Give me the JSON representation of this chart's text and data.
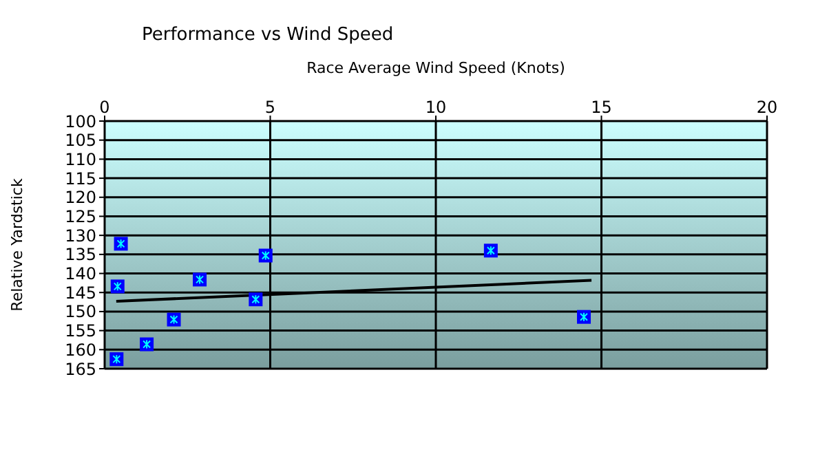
{
  "chart_data": {
    "type": "scatter",
    "title": "Performance vs Wind Speed",
    "xlabel": "Race Average Wind Speed (Knots)",
    "ylabel": "Relative Yardstick",
    "xlim": [
      0,
      20
    ],
    "xticks": [
      0,
      5,
      10,
      15,
      20
    ],
    "ylim": [
      165,
      100
    ],
    "yticks": [
      100,
      105,
      110,
      115,
      120,
      125,
      130,
      135,
      140,
      145,
      150,
      155,
      160,
      165
    ],
    "grid": true,
    "series": [
      {
        "marker": "square",
        "color": "#0000ff",
        "x": [
          0.49,
          0.39,
          0.36,
          1.27,
          2.09,
          2.87,
          4.56,
          4.86,
          11.66,
          14.47
        ],
        "values": [
          132.2,
          143.4,
          162.5,
          158.6,
          152.1,
          141.6,
          146.8,
          135.3,
          134.0,
          151.4
        ]
      },
      {
        "type": "line",
        "marker": "none",
        "color": "#000000",
        "x": [
          0.35,
          14.7
        ],
        "values": [
          147.3,
          141.8
        ]
      }
    ]
  }
}
